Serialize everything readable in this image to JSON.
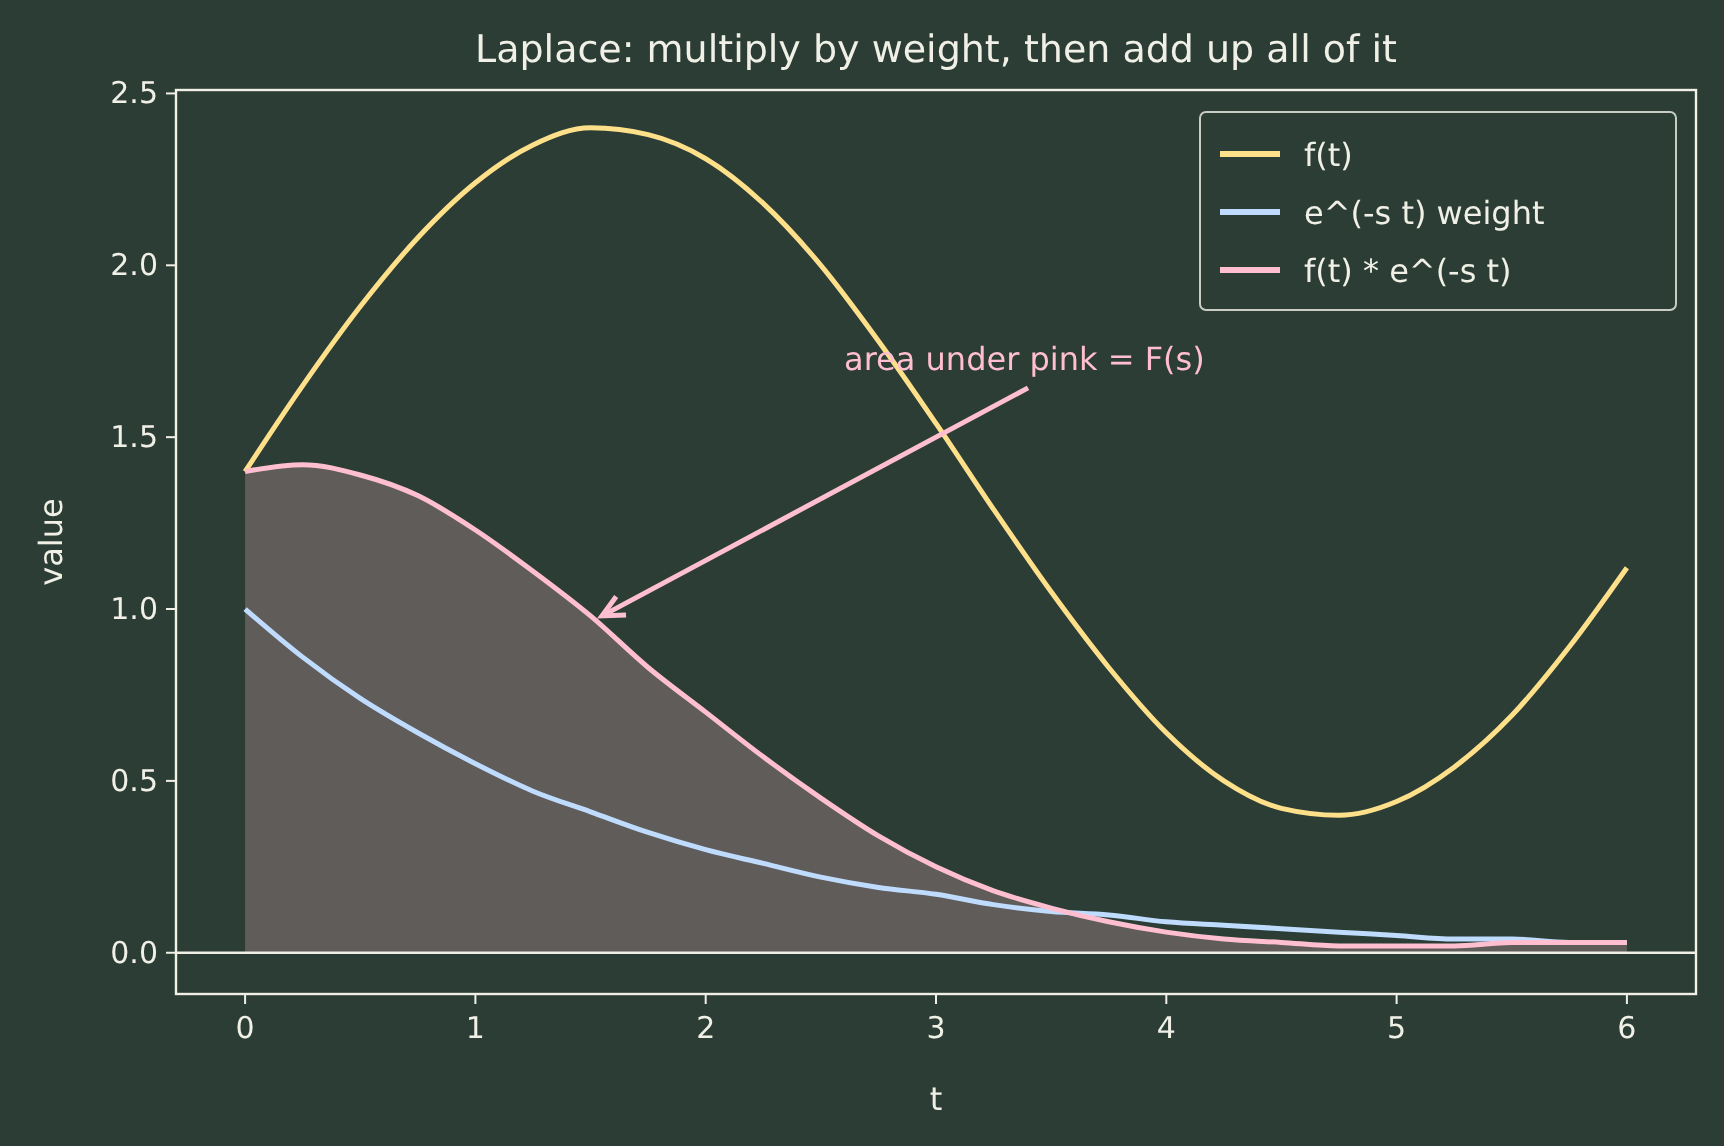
{
  "chart_data": {
    "type": "line",
    "title": "Laplace: multiply by weight, then add up all of it",
    "xlabel": "t",
    "ylabel": "value",
    "x": [
      0,
      0.25,
      0.5,
      0.75,
      1,
      1.25,
      1.5,
      1.75,
      2,
      2.25,
      2.5,
      2.75,
      3,
      3.25,
      3.5,
      3.75,
      4,
      4.25,
      4.5,
      4.75,
      5,
      5.25,
      5.5,
      5.75,
      6
    ],
    "series": [
      {
        "name": "f(t)",
        "color": "#ffe08a",
        "values": [
          1.4,
          1.65,
          1.88,
          2.08,
          2.24,
          2.35,
          2.4,
          2.38,
          2.31,
          2.18,
          2.0,
          1.78,
          1.54,
          1.29,
          1.05,
          0.83,
          0.64,
          0.5,
          0.42,
          0.4,
          0.44,
          0.54,
          0.69,
          0.89,
          1.12
        ]
      },
      {
        "name": "e^(-s t) weight",
        "color": "#bfdcff",
        "values": [
          1.0,
          0.86,
          0.74,
          0.64,
          0.55,
          0.47,
          0.41,
          0.35,
          0.3,
          0.26,
          0.22,
          0.19,
          0.17,
          0.14,
          0.12,
          0.11,
          0.09,
          0.08,
          0.07,
          0.06,
          0.05,
          0.04,
          0.04,
          0.03,
          0.03
        ]
      },
      {
        "name": "f(t) * e^(-s t)",
        "type": "area",
        "color": "#ffbfd0",
        "values": [
          1.4,
          1.42,
          1.39,
          1.33,
          1.23,
          1.11,
          0.98,
          0.83,
          0.7,
          0.57,
          0.45,
          0.34,
          0.25,
          0.18,
          0.13,
          0.09,
          0.06,
          0.04,
          0.03,
          0.02,
          0.02,
          0.02,
          0.03,
          0.03,
          0.03
        ]
      }
    ],
    "xlim": [
      -0.3,
      6.3
    ],
    "xticks": [
      0,
      1,
      2,
      3,
      4,
      5,
      6
    ],
    "ylim": [
      -0.12,
      2.51
    ],
    "yticks": [
      {
        "value": 0,
        "label": "0.0"
      },
      {
        "value": 0.5,
        "label": "0.5"
      },
      {
        "value": 1,
        "label": "1.0"
      },
      {
        "value": 1.5,
        "label": "1.5"
      },
      {
        "value": 2,
        "label": "2.0"
      },
      {
        "value": 2.5,
        "label": "2.5"
      }
    ],
    "ref_lines": [
      {
        "axis": "y",
        "value": 0,
        "color": "#f0f0e6"
      }
    ],
    "annotations": [
      {
        "text": "area under pink = F(s)",
        "x": 1.55,
        "y": 0.98
      }
    ],
    "legend": "top right",
    "grid": false
  }
}
